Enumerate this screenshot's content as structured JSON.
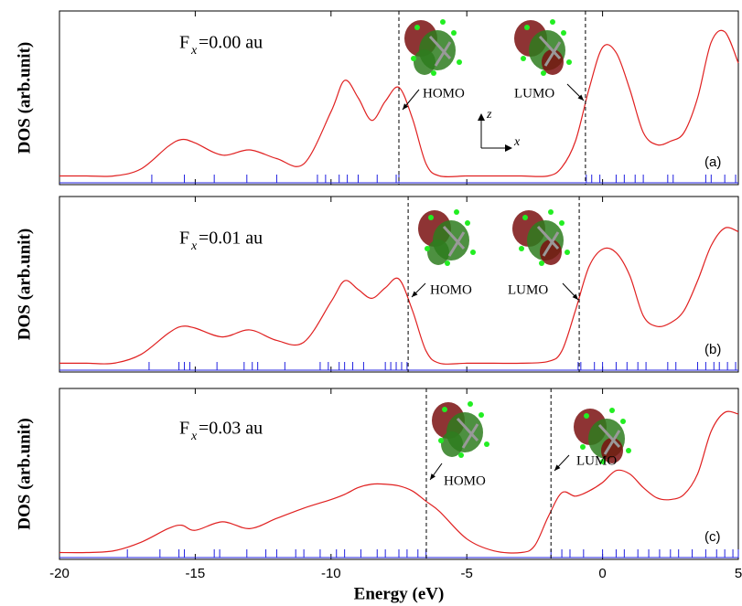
{
  "chart_data": [
    {
      "type": "line",
      "panel_label": "(a)",
      "field_label": {
        "symbol": "F",
        "subscript": "x",
        "text": "=0.00 au"
      },
      "ylabel": "DOS (arb.unit)",
      "axis_labels": [
        "z",
        "x"
      ],
      "xlim": [
        -20,
        5
      ],
      "ylim": [
        0,
        1
      ],
      "color": "#e02020",
      "level_color": "#2020e0",
      "homo": {
        "label": "HOMO",
        "energy": -7.5
      },
      "lumo": {
        "label": "LUMO",
        "energy": -0.63
      },
      "x": [
        -20,
        -19,
        -18,
        -17,
        -16,
        -15.5,
        -15,
        -14,
        -13,
        -12,
        -11,
        -10,
        -9.5,
        -9,
        -8.5,
        -8,
        -7.5,
        -7,
        -6.5,
        -6,
        -5,
        -4,
        -3,
        -2,
        -1.5,
        -1,
        -0.5,
        0,
        0.5,
        1,
        1.5,
        2,
        2.5,
        3,
        3.5,
        4,
        4.5,
        5
      ],
      "values": [
        0.05,
        0.05,
        0.05,
        0.09,
        0.22,
        0.26,
        0.24,
        0.17,
        0.2,
        0.15,
        0.12,
        0.42,
        0.6,
        0.5,
        0.37,
        0.48,
        0.56,
        0.38,
        0.12,
        0.05,
        0.05,
        0.05,
        0.05,
        0.05,
        0.1,
        0.25,
        0.55,
        0.79,
        0.76,
        0.55,
        0.3,
        0.23,
        0.25,
        0.3,
        0.5,
        0.82,
        0.88,
        0.7
      ],
      "levels": [
        -16.6,
        -15.4,
        -14.3,
        -13.1,
        -12,
        -10.5,
        -10.2,
        -9.7,
        -9.4,
        -9,
        -8.3,
        -7.6,
        -7.5,
        -0.6,
        -0.4,
        -0.1,
        0.5,
        0.8,
        1.2,
        1.5,
        2.4,
        2.6,
        3.8,
        4,
        4.5,
        4.9
      ]
    },
    {
      "type": "line",
      "panel_label": "(b)",
      "field_label": {
        "symbol": "F",
        "subscript": "x",
        "text": "=0.01 au"
      },
      "ylabel": "DOS (arb.unit)",
      "xlim": [
        -20,
        5
      ],
      "ylim": [
        0,
        1
      ],
      "color": "#e02020",
      "level_color": "#2020e0",
      "homo": {
        "label": "HOMO",
        "energy": -7.16
      },
      "lumo": {
        "label": "LUMO",
        "energy": -0.86
      },
      "x": [
        -20,
        -19,
        -18,
        -17,
        -16,
        -15.5,
        -15,
        -14,
        -13,
        -12,
        -11,
        -10,
        -9.5,
        -9,
        -8.5,
        -8,
        -7.5,
        -7,
        -6.5,
        -6,
        -5,
        -4,
        -3,
        -2,
        -1.5,
        -1,
        -0.5,
        0,
        0.5,
        1,
        1.5,
        2,
        2.5,
        3,
        3.5,
        4,
        4.5,
        5
      ],
      "values": [
        0.05,
        0.05,
        0.05,
        0.1,
        0.22,
        0.26,
        0.25,
        0.2,
        0.24,
        0.18,
        0.17,
        0.4,
        0.52,
        0.47,
        0.42,
        0.48,
        0.53,
        0.35,
        0.12,
        0.05,
        0.05,
        0.05,
        0.05,
        0.06,
        0.12,
        0.35,
        0.6,
        0.7,
        0.68,
        0.55,
        0.32,
        0.26,
        0.28,
        0.35,
        0.52,
        0.72,
        0.82,
        0.8
      ],
      "levels": [
        -16.7,
        -15.6,
        -15.4,
        -15.2,
        -14.2,
        -13.2,
        -12.9,
        -12.7,
        -11.7,
        -10.4,
        -10.1,
        -9.7,
        -9.5,
        -9.2,
        -8.8,
        -8,
        -7.8,
        -7.6,
        -7.4,
        -7.2,
        -0.9,
        -0.8,
        -0.3,
        0,
        0.5,
        0.9,
        1.3,
        1.6,
        2.4,
        2.7,
        3.5,
        3.8,
        4.1,
        4.3,
        4.6,
        4.9
      ]
    },
    {
      "type": "line",
      "panel_label": "(c)",
      "field_label": {
        "symbol": "F",
        "subscript": "x",
        "text": "=0.03 au"
      },
      "ylabel": "DOS (arb.unit)",
      "xlabel": "Energy (eV)",
      "xlim": [
        -20,
        5
      ],
      "ylim": [
        0,
        1
      ],
      "xticks": [
        -20,
        -15,
        -10,
        -5,
        0,
        5
      ],
      "color": "#e02020",
      "level_color": "#2020e0",
      "homo": {
        "label": "HOMO",
        "energy": -6.49
      },
      "lumo": {
        "label": "LUMO",
        "energy": -1.9
      },
      "x": [
        -20,
        -19,
        -18,
        -17,
        -16,
        -15.5,
        -15,
        -14,
        -13,
        -12,
        -11,
        -10,
        -9.5,
        -9,
        -8.5,
        -8,
        -7.5,
        -7,
        -6.5,
        -6,
        -5,
        -4,
        -3,
        -2.5,
        -2,
        -1.5,
        -1,
        -0.5,
        0,
        0.5,
        1,
        1.5,
        2,
        2.5,
        3,
        3.5,
        4,
        4.5,
        5
      ],
      "values": [
        0.04,
        0.04,
        0.05,
        0.1,
        0.18,
        0.2,
        0.17,
        0.22,
        0.18,
        0.24,
        0.3,
        0.35,
        0.38,
        0.42,
        0.44,
        0.44,
        0.43,
        0.4,
        0.34,
        0.28,
        0.12,
        0.05,
        0.04,
        0.08,
        0.25,
        0.39,
        0.37,
        0.4,
        0.45,
        0.52,
        0.5,
        0.42,
        0.36,
        0.35,
        0.38,
        0.5,
        0.75,
        0.86,
        0.85
      ],
      "levels": [
        -17.5,
        -16.3,
        -15.6,
        -15.4,
        -14.3,
        -14.1,
        -13.1,
        -12.4,
        -12,
        -11.3,
        -11,
        -10.4,
        -9.8,
        -9.5,
        -8.9,
        -8.3,
        -8,
        -7.5,
        -7.2,
        -6.8,
        -6.5,
        -1.9,
        -1.5,
        -1.2,
        -0.7,
        0,
        0.5,
        0.8,
        1.3,
        1.7,
        2.1,
        2.5,
        2.8,
        3.3,
        3.8,
        4.2,
        4.5,
        4.8,
        5
      ]
    }
  ]
}
